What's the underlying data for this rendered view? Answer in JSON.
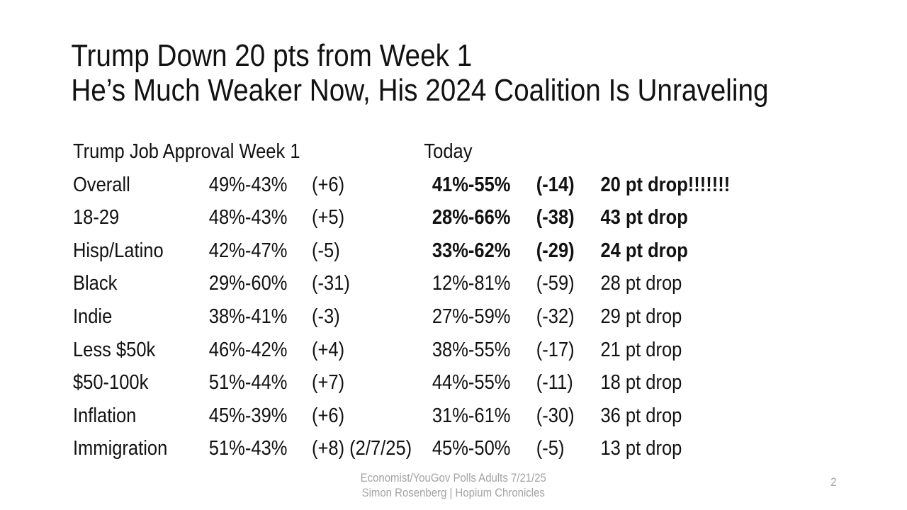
{
  "slide": {
    "title_line1": "Trump Down 20 pts from Week 1",
    "title_line2": "He’s Much Weaker Now, His 2024 Coalition Is Unraveling",
    "page_number": "2"
  },
  "table": {
    "header": {
      "week1": "Trump Job Approval Week 1",
      "today": "Today"
    },
    "rows": [
      {
        "label": "Overall",
        "week1": "49%-43%",
        "week1_margin": "(+6)",
        "today": "41%-55%",
        "today_margin": "(-14)",
        "drop": "20 pt drop!!!!!!!",
        "emphasis": true
      },
      {
        "label": "18-29",
        "week1": "48%-43%",
        "week1_margin": "(+5)",
        "today": "28%-66%",
        "today_margin": "(-38)",
        "drop": "43 pt drop",
        "emphasis": true
      },
      {
        "label": "Hisp/Latino",
        "week1": "42%-47%",
        "week1_margin": "(-5)",
        "today": "33%-62%",
        "today_margin": "(-29)",
        "drop": "24 pt drop",
        "emphasis": true
      },
      {
        "label": "Black",
        "week1": "29%-60%",
        "week1_margin": "(-31)",
        "today": "12%-81%",
        "today_margin": "(-59)",
        "drop": "28 pt drop",
        "emphasis": false
      },
      {
        "label": "Indie",
        "week1": "38%-41%",
        "week1_margin": "(-3)",
        "today": "27%-59%",
        "today_margin": "(-32)",
        "drop": "29 pt drop",
        "emphasis": false
      },
      {
        "label": "Less $50k",
        "week1": "46%-42%",
        "week1_margin": "(+4)",
        "today": "38%-55%",
        "today_margin": "(-17)",
        "drop": "21 pt drop",
        "emphasis": false
      },
      {
        "label": "$50-100k",
        "week1": "51%-44%",
        "week1_margin": "(+7)",
        "today": "44%-55%",
        "today_margin": "(-11)",
        "drop": "18 pt drop",
        "emphasis": false
      },
      {
        "label": "Inflation",
        "week1": "45%-39%",
        "week1_margin": "(+6)",
        "today": "31%-61%",
        "today_margin": "(-30)",
        "drop": "36 pt drop",
        "emphasis": false
      },
      {
        "label": "Immigration",
        "week1": "51%-43%",
        "week1_margin": "(+8) (2/7/25)",
        "today": "45%-50%",
        "today_margin": "(-5)",
        "drop": "13 pt drop",
        "emphasis": false
      }
    ]
  },
  "footer": {
    "source_line": "Economist/YouGov Polls Adults 7/21/25",
    "author_line": "Simon Rosenberg | Hopium Chronicles"
  },
  "colors": {
    "text": "#121212",
    "muted": "#a3a3a3",
    "background": "#ffffff"
  }
}
